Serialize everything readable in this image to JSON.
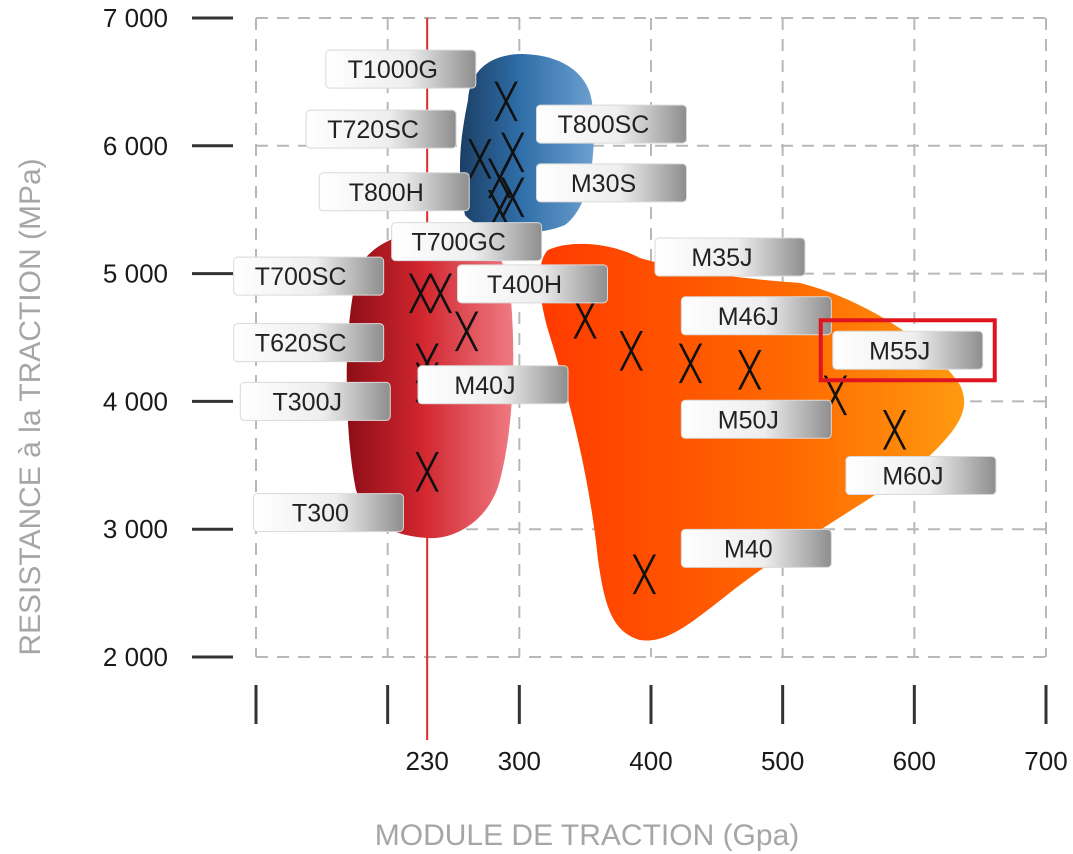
{
  "chart_data": {
    "type": "scatter",
    "title": "",
    "xlabel": "MODULE DE TRACTION (Gpa)",
    "ylabel": "RESISTANCE à la TRACTION (MPa)",
    "xlim": [
      100,
      700
    ],
    "ylim": [
      2000,
      7000
    ],
    "x_ticks": [
      230,
      300,
      400,
      500,
      600,
      700
    ],
    "y_ticks": [
      "2 000",
      "3 000",
      "4 000",
      "5 000",
      "6 000",
      "7 000"
    ],
    "y_tick_values": [
      2000,
      3000,
      4000,
      5000,
      6000,
      7000
    ],
    "grid": true,
    "reference_line_x": 230,
    "highlighted": "M55J",
    "region_colors": {
      "blue": "#2f6ea8",
      "red": "#c8202a",
      "orange": "#ff6a00"
    },
    "points": [
      {
        "x": 230,
        "y": 3450
      },
      {
        "x": 230,
        "y": 4150
      },
      {
        "x": 230,
        "y": 4300
      },
      {
        "x": 225,
        "y": 4850
      },
      {
        "x": 240,
        "y": 4850
      },
      {
        "x": 260,
        "y": 4550
      },
      {
        "x": 290,
        "y": 6350
      },
      {
        "x": 270,
        "y": 5900
      },
      {
        "x": 295,
        "y": 5950
      },
      {
        "x": 285,
        "y": 5750
      },
      {
        "x": 295,
        "y": 5600
      },
      {
        "x": 285,
        "y": 5500
      },
      {
        "x": 350,
        "y": 4650
      },
      {
        "x": 385,
        "y": 4400
      },
      {
        "x": 430,
        "y": 4300
      },
      {
        "x": 475,
        "y": 4250
      },
      {
        "x": 540,
        "y": 4050
      },
      {
        "x": 585,
        "y": 3780
      },
      {
        "x": 395,
        "y": 2650
      }
    ],
    "labels": [
      {
        "text": "T1000G",
        "x": 210,
        "y": 6600
      },
      {
        "text": "T720SC",
        "x": 195,
        "y": 6130
      },
      {
        "text": "T800H",
        "x": 205,
        "y": 5640
      },
      {
        "text": "T800SC",
        "x": 370,
        "y": 6170
      },
      {
        "text": "M30S",
        "x": 370,
        "y": 5710
      },
      {
        "text": "T700GC",
        "x": 260,
        "y": 5250
      },
      {
        "text": "T700SC",
        "x": 140,
        "y": 4980
      },
      {
        "text": "T400H",
        "x": 310,
        "y": 4920
      },
      {
        "text": "M35J",
        "x": 460,
        "y": 5130
      },
      {
        "text": "M46J",
        "x": 480,
        "y": 4670
      },
      {
        "text": "T620SC",
        "x": 140,
        "y": 4460
      },
      {
        "text": "M55J",
        "x": 595,
        "y": 4400
      },
      {
        "text": "M40J",
        "x": 280,
        "y": 4130
      },
      {
        "text": "T300J",
        "x": 145,
        "y": 4000
      },
      {
        "text": "M50J",
        "x": 480,
        "y": 3860
      },
      {
        "text": "M60J",
        "x": 605,
        "y": 3420
      },
      {
        "text": "T300",
        "x": 155,
        "y": 3130
      },
      {
        "text": "M40",
        "x": 480,
        "y": 2850
      }
    ]
  }
}
